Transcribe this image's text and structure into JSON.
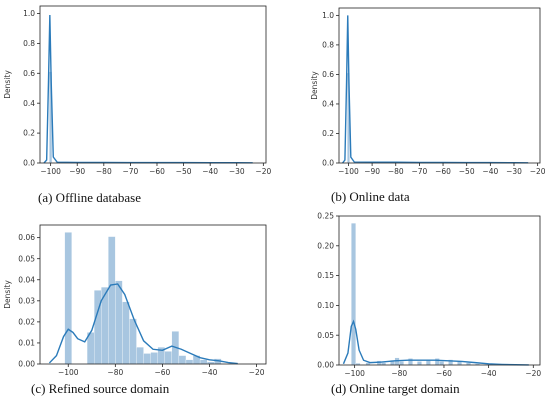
{
  "chart_data": [
    {
      "type": "bar",
      "caption": "(a) Offline database",
      "ylabel": "Density",
      "xlim": [
        -104,
        -19
      ],
      "ylim": [
        0,
        1.05
      ],
      "xticks": [
        -100,
        -90,
        -80,
        -70,
        -60,
        -50,
        -40,
        -30,
        -20
      ],
      "yticks": [
        0.0,
        0.2,
        0.4,
        0.6,
        0.8,
        1.0
      ],
      "ytick_labels": [
        "0.0",
        "0.2",
        "0.4",
        "0.6",
        "0.8",
        "1.0"
      ],
      "bars": [
        {
          "x0": -100.5,
          "x1": -99.5,
          "value": 0.61
        }
      ],
      "kde": [
        [
          -102.5,
          0
        ],
        [
          -101.5,
          0.02
        ],
        [
          -100.8,
          0.55
        ],
        [
          -100.3,
          0.99
        ],
        [
          -99.8,
          0.55
        ],
        [
          -99.0,
          0.04
        ],
        [
          -97.5,
          0.005
        ],
        [
          -90,
          0.004
        ],
        [
          -80,
          0.004
        ],
        [
          -70,
          0.003
        ],
        [
          -60,
          0.003
        ],
        [
          -50,
          0.003
        ],
        [
          -40,
          0.002
        ],
        [
          -30,
          0.002
        ],
        [
          -24,
          0.001
        ]
      ],
      "bar_color": "#a8c6e0",
      "line_color": "#2b7bba"
    },
    {
      "type": "bar",
      "caption": "(b) Online data",
      "ylabel": "Density",
      "xlim": [
        -104,
        -19
      ],
      "ylim": [
        0,
        1.05
      ],
      "xticks": [
        -100,
        -90,
        -80,
        -70,
        -60,
        -50,
        -40,
        -30,
        -20
      ],
      "yticks": [
        0.0,
        0.2,
        0.4,
        0.6,
        0.8,
        1.0
      ],
      "ytick_labels": [
        "0.0",
        "0.2",
        "0.4",
        "0.6",
        "0.8",
        "1.0"
      ],
      "bars": [
        {
          "x0": -100.5,
          "x1": -99.5,
          "value": 0.61
        },
        {
          "x0": -93,
          "x1": -92,
          "value": 0.01
        },
        {
          "x0": -85,
          "x1": -84,
          "value": 0.01
        }
      ],
      "kde": [
        [
          -102.5,
          0
        ],
        [
          -101.5,
          0.02
        ],
        [
          -100.8,
          0.55
        ],
        [
          -100.3,
          1.0
        ],
        [
          -99.8,
          0.55
        ],
        [
          -99.0,
          0.04
        ],
        [
          -97.5,
          0.006
        ],
        [
          -90,
          0.005
        ],
        [
          -80,
          0.005
        ],
        [
          -70,
          0.004
        ],
        [
          -60,
          0.004
        ],
        [
          -50,
          0.003
        ],
        [
          -40,
          0.003
        ],
        [
          -30,
          0.002
        ],
        [
          -24,
          0.001
        ]
      ],
      "bar_color": "#a8c6e0",
      "line_color": "#2b7bba"
    },
    {
      "type": "bar",
      "caption": "(c) Refined source domain",
      "ylabel": "Density",
      "xlim": [
        -112,
        -16
      ],
      "ylim": [
        0,
        0.066
      ],
      "xticks": [
        -100,
        -80,
        -60,
        -40,
        -20
      ],
      "yticks": [
        0.0,
        0.01,
        0.02,
        0.03,
        0.04,
        0.05,
        0.06
      ],
      "ytick_labels": [
        "0.00",
        "0.01",
        "0.02",
        "0.03",
        "0.04",
        "0.05",
        "0.06"
      ],
      "bars": [
        {
          "x0": -101.5,
          "x1": -98.5,
          "value": 0.0625
        },
        {
          "x0": -92,
          "x1": -89,
          "value": 0.015
        },
        {
          "x0": -89,
          "x1": -86,
          "value": 0.035
        },
        {
          "x0": -86,
          "x1": -83,
          "value": 0.0365
        },
        {
          "x0": -83,
          "x1": -80,
          "value": 0.0605
        },
        {
          "x0": -80,
          "x1": -77,
          "value": 0.0395
        },
        {
          "x0": -77,
          "x1": -74,
          "value": 0.0295
        },
        {
          "x0": -74,
          "x1": -71,
          "value": 0.0215
        },
        {
          "x0": -71,
          "x1": -68,
          "value": 0.008
        },
        {
          "x0": -68,
          "x1": -65,
          "value": 0.005
        },
        {
          "x0": -65,
          "x1": -62,
          "value": 0.0055
        },
        {
          "x0": -62,
          "x1": -59,
          "value": 0.008
        },
        {
          "x0": -59,
          "x1": -56,
          "value": 0.006
        },
        {
          "x0": -56,
          "x1": -53,
          "value": 0.0155
        },
        {
          "x0": -53,
          "x1": -50,
          "value": 0.004
        },
        {
          "x0": -50,
          "x1": -47,
          "value": 0.002
        },
        {
          "x0": -47,
          "x1": -44,
          "value": 0.004
        },
        {
          "x0": -44,
          "x1": -41,
          "value": 0.002
        },
        {
          "x0": -41,
          "x1": -38,
          "value": 0.001
        },
        {
          "x0": -38,
          "x1": -35,
          "value": 0.0025
        }
      ],
      "kde": [
        [
          -108,
          0.0005
        ],
        [
          -105,
          0.004
        ],
        [
          -102,
          0.013
        ],
        [
          -100,
          0.0165
        ],
        [
          -98,
          0.015
        ],
        [
          -96,
          0.012
        ],
        [
          -93,
          0.0105
        ],
        [
          -90,
          0.016
        ],
        [
          -86,
          0.03
        ],
        [
          -82,
          0.0375
        ],
        [
          -79,
          0.038
        ],
        [
          -76,
          0.033
        ],
        [
          -72,
          0.021
        ],
        [
          -68,
          0.011
        ],
        [
          -64,
          0.007
        ],
        [
          -60,
          0.0065
        ],
        [
          -56,
          0.0085
        ],
        [
          -52,
          0.007
        ],
        [
          -48,
          0.005
        ],
        [
          -44,
          0.003
        ],
        [
          -40,
          0.002
        ],
        [
          -36,
          0.0015
        ],
        [
          -32,
          0.0007
        ],
        [
          -28,
          0.0002
        ]
      ],
      "bar_color": "#a8c6e0",
      "line_color": "#2b7bba"
    },
    {
      "type": "bar",
      "caption": "(d) Online target domain",
      "ylabel": "",
      "xlim": [
        -107,
        -17
      ],
      "ylim": [
        0,
        0.25
      ],
      "xticks": [
        -100,
        -80,
        -60,
        -40,
        -20
      ],
      "yticks": [
        0.0,
        0.05,
        0.1,
        0.15,
        0.2,
        0.25
      ],
      "ytick_labels": [
        "0.00",
        "0.05",
        "0.10",
        "0.15",
        "0.20",
        "0.25"
      ],
      "bars": [
        {
          "x0": -101.5,
          "x1": -99.5,
          "value": 0.238
        },
        {
          "x0": -99.5,
          "x1": -97.5,
          "value": 0.003
        },
        {
          "x0": -95,
          "x1": -93,
          "value": 0.004
        },
        {
          "x0": -90,
          "x1": -88,
          "value": 0.007
        },
        {
          "x0": -88,
          "x1": -86,
          "value": 0.004
        },
        {
          "x0": -84,
          "x1": -82,
          "value": 0.008
        },
        {
          "x0": -82,
          "x1": -80,
          "value": 0.012
        },
        {
          "x0": -80,
          "x1": -78,
          "value": 0.006
        },
        {
          "x0": -76,
          "x1": -74,
          "value": 0.011
        },
        {
          "x0": -72,
          "x1": -70,
          "value": 0.006
        },
        {
          "x0": -68,
          "x1": -66,
          "value": 0.008
        },
        {
          "x0": -64,
          "x1": -62,
          "value": 0.011
        },
        {
          "x0": -62,
          "x1": -60,
          "value": 0.006
        },
        {
          "x0": -58,
          "x1": -56,
          "value": 0.009
        },
        {
          "x0": -54,
          "x1": -52,
          "value": 0.006
        },
        {
          "x0": -50,
          "x1": -48,
          "value": 0.004
        },
        {
          "x0": -46,
          "x1": -44,
          "value": 0.002
        },
        {
          "x0": -40,
          "x1": -38,
          "value": 0.001
        }
      ],
      "kde": [
        [
          -105,
          0.002
        ],
        [
          -103,
          0.02
        ],
        [
          -101.5,
          0.065
        ],
        [
          -100.5,
          0.073
        ],
        [
          -99.5,
          0.06
        ],
        [
          -98,
          0.025
        ],
        [
          -96,
          0.008
        ],
        [
          -93,
          0.004
        ],
        [
          -88,
          0.005
        ],
        [
          -82,
          0.007
        ],
        [
          -76,
          0.008
        ],
        [
          -70,
          0.008
        ],
        [
          -64,
          0.008
        ],
        [
          -58,
          0.007
        ],
        [
          -52,
          0.006
        ],
        [
          -46,
          0.004
        ],
        [
          -40,
          0.002
        ],
        [
          -34,
          0.001
        ],
        [
          -28,
          0.0004
        ],
        [
          -22,
          0.0001
        ]
      ],
      "bar_color": "#a8c6e0",
      "line_color": "#2b7bba"
    }
  ]
}
